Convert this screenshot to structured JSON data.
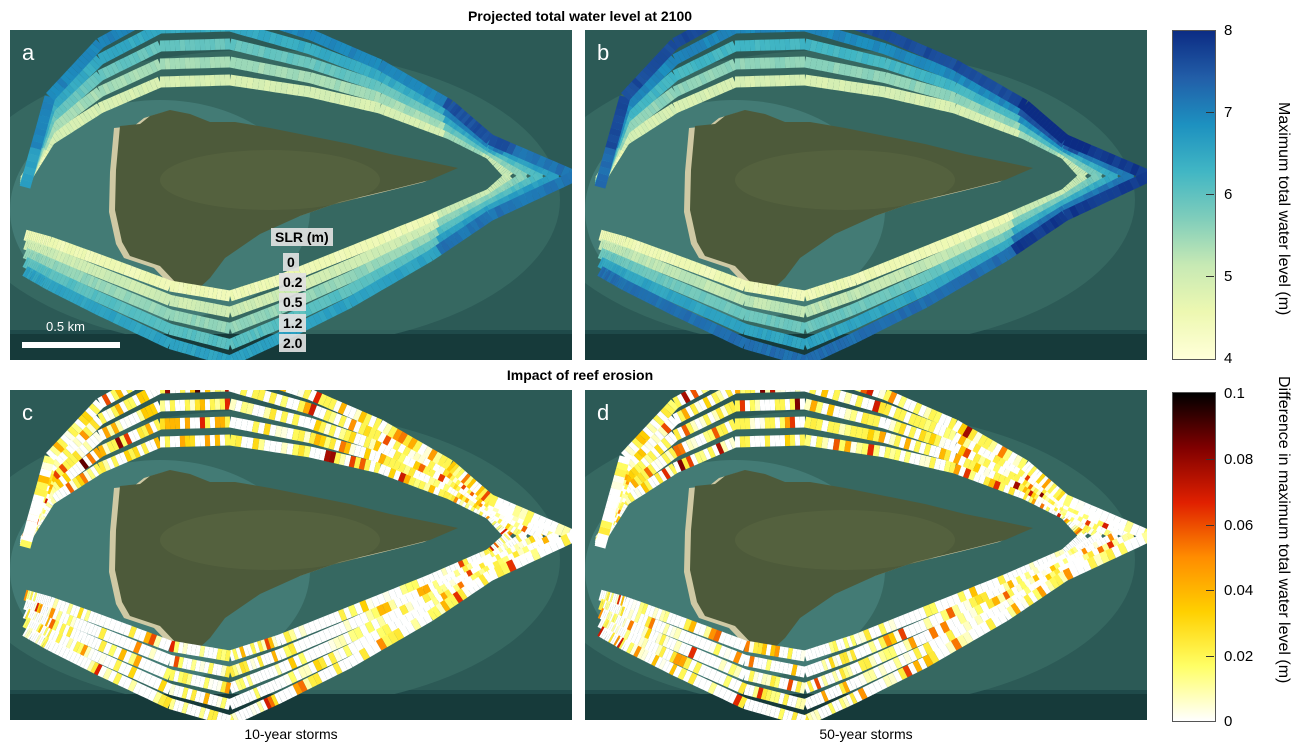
{
  "headings": {
    "top": "Projected total water level at 2100",
    "bottom": "Impact of reef erosion"
  },
  "panels": {
    "a": {
      "label": "a",
      "variant": "water_level",
      "slr_scale": 0.95
    },
    "b": {
      "label": "b",
      "variant": "water_level",
      "slr_scale": 1.25
    },
    "c": {
      "label": "c",
      "variant": "difference",
      "seed": 11
    },
    "d": {
      "label": "d",
      "variant": "difference",
      "seed": 29
    }
  },
  "slr_legend": {
    "title": "SLR (m)",
    "levels": [
      "0",
      "0.2",
      "0.5",
      "1.2",
      "2.0"
    ]
  },
  "scale_bar": {
    "label": "0.5 km"
  },
  "colorbar_top": {
    "label": "Maximum total water level (m)",
    "ticks": [
      "8",
      "7",
      "6",
      "5",
      "4"
    ],
    "range": [
      4,
      8
    ],
    "colors": [
      "#ffffd9",
      "#edf8b1",
      "#c7e9b4",
      "#7fcdbb",
      "#41b6c4",
      "#1d91c0",
      "#225ea8",
      "#0c2c84"
    ]
  },
  "colorbar_bottom": {
    "label": "Difference in maximum total water level (m)",
    "ticks": [
      "0.1",
      "0.08",
      "0.06",
      "0.04",
      "0.02",
      "0"
    ],
    "range": [
      0,
      0.1
    ],
    "colors": [
      "#ffffff",
      "#ffff66",
      "#ffd000",
      "#ff8c00",
      "#e02000",
      "#800000",
      "#000000"
    ]
  },
  "captions": {
    "c": "10-year storms",
    "d": "50-year storms"
  }
}
